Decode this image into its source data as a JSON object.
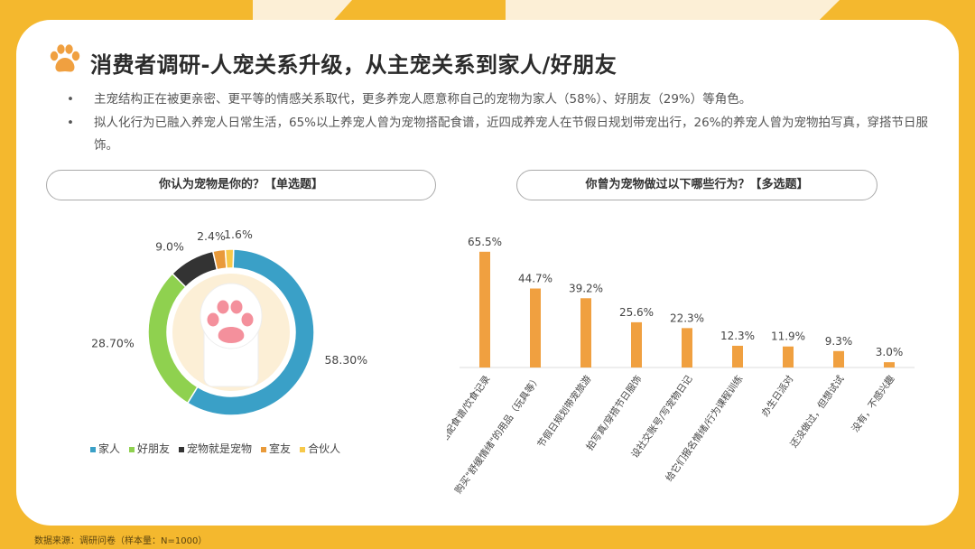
{
  "header": {
    "title": "消费者调研-人宠关系升级，从主宠关系到家人/好朋友",
    "paw_icon": "paw-icon"
  },
  "bullets": [
    "主宠结构正在被更亲密、更平等的情感关系取代，更多养宠人愿意称自己的宠物为家人（58%）、好朋友（29%）等角色。",
    "拟人化行为已融入养宠人日常生活，65%以上养宠人曾为宠物搭配食谱，近四成养宠人在节假日规划带宠出行，26%的养宠人曾为宠物拍写真，穿搭节日服饰。"
  ],
  "bullet_marker": "•",
  "questions": {
    "q1": "你认为宠物是你的？【单选题】",
    "q2": "你曾为宠物做过以下哪些行为？【多选题】"
  },
  "source": "数据来源：调研问卷（样本量：N=1000）",
  "colors": {
    "background": "#f4b82e",
    "blue": "#3aa0c7",
    "green": "#8fd14f",
    "dark": "#333333",
    "orange": "#e99a3a",
    "yellow": "#f7c94a",
    "bar": "#f0a040"
  },
  "chart_data": [
    {
      "type": "pie",
      "style": "donut",
      "categories": [
        "家人",
        "好朋友",
        "宠物就是宠物",
        "室友",
        "合伙人"
      ],
      "values": [
        58.3,
        28.7,
        9.0,
        2.4,
        1.6
      ],
      "labels": [
        "58.30%",
        "28.70%",
        "9.0%",
        "2.4%",
        "1.6%"
      ],
      "colors": [
        "#3aa0c7",
        "#8fd14f",
        "#333333",
        "#e99a3a",
        "#f7c94a"
      ],
      "legend": "bottom"
    },
    {
      "type": "bar",
      "categories": [
        "搭配食谱/饮食记录",
        "购买\"舒缓情绪\"的用品（玩具等）",
        "节假日规划带宠旅游",
        "拍写真/穿搭节日服饰",
        "设社交账号/写宠物日记",
        "给它们报名情绪/行为课程训练",
        "办生日派对",
        "还没做过，但想试试",
        "没有，不感兴趣"
      ],
      "values": [
        65.5,
        44.7,
        39.2,
        25.6,
        22.3,
        12.3,
        11.9,
        9.3,
        3.0
      ],
      "labels": [
        "65.5%",
        "44.7%",
        "39.2%",
        "25.6%",
        "22.3%",
        "12.3%",
        "11.9%",
        "9.3%",
        "3.0%"
      ],
      "ylim": [
        0,
        70
      ],
      "grid": false,
      "color": "#f0a040"
    }
  ]
}
